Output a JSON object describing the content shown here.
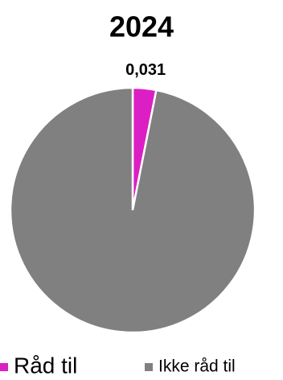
{
  "chart_data": {
    "type": "pie",
    "title": "2024",
    "categories": [
      "Råd til",
      "Ikke råd til"
    ],
    "values": [
      0.031,
      0.969
    ],
    "value_labels": [
      "0,031",
      null
    ],
    "colors": [
      "#dc1fc4",
      "#808080"
    ],
    "legend": "bottom"
  }
}
